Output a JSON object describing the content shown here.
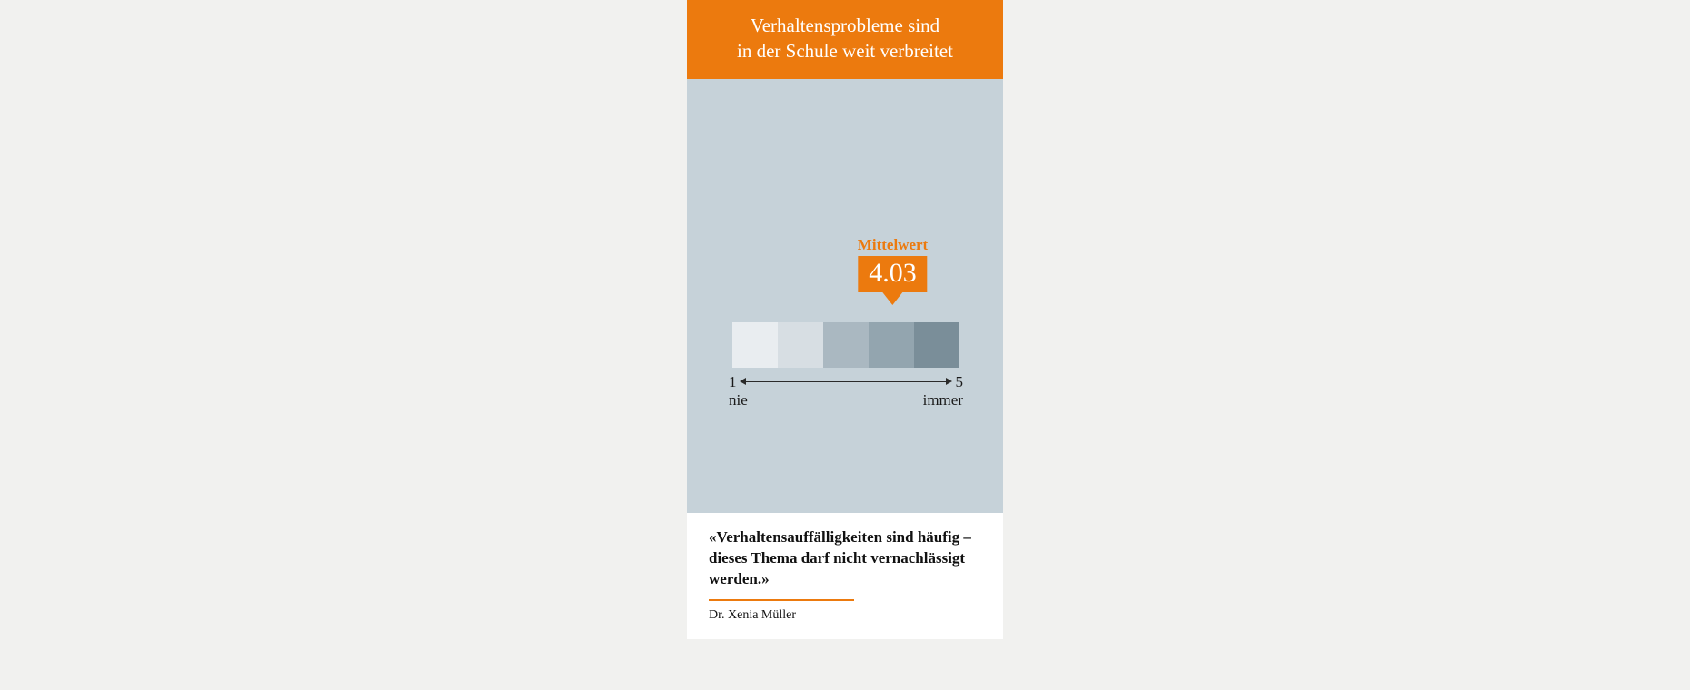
{
  "colors": {
    "page_bg": "#f1f1ef",
    "card_bg": "#ffffff",
    "accent": "#ec7a0e",
    "chart_bg": "#c6d2d9",
    "text_dark": "#1a1a1a"
  },
  "header": {
    "title_line1": "Verhaltensprobleme sind",
    "title_line2": "in der Schule weit verbreitet"
  },
  "chart": {
    "type": "likert-scale",
    "scale_min": 1,
    "scale_max": 5,
    "cell_count": 5,
    "cell_colors": [
      "#e9edf0",
      "#d7dee3",
      "#aab8c1",
      "#93a5af",
      "#7a8e99"
    ],
    "mean_label": "Mittelwert",
    "mean_value": "4.03",
    "mean_value_numeric": 4.03,
    "axis_min_number": "1",
    "axis_max_number": "5",
    "axis_min_label": "nie",
    "axis_max_label": "immer",
    "axis_line_color": "#2a2a2a"
  },
  "quote": {
    "text": "«Verhaltensauffälligkeiten sind häufig – dieses Thema darf nicht vernachlässigt werden.»",
    "attribution": "Dr. Xenia Müller"
  }
}
